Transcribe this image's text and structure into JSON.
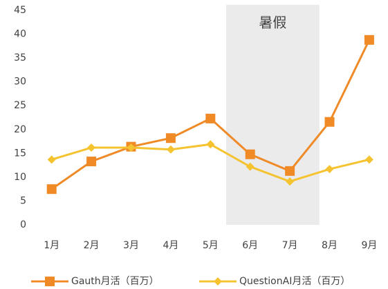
{
  "chart_data": {
    "type": "line",
    "categories": [
      "1月",
      "2月",
      "3月",
      "4月",
      "5月",
      "6月",
      "7月",
      "8月",
      "9月"
    ],
    "series": [
      {
        "name": "Gauth月活（百万）",
        "color": "#ef8a27",
        "marker": "square",
        "values": [
          7.5,
          13.3,
          16.4,
          18.2,
          22.3,
          14.8,
          11.3,
          21.6,
          38.8
        ]
      },
      {
        "name": "QuestionAI月活（百万）",
        "color": "#f5c330",
        "marker": "diamond",
        "values": [
          13.7,
          16.2,
          16.2,
          15.8,
          16.9,
          12.2,
          9.1,
          11.7,
          13.7
        ]
      }
    ],
    "ylim": [
      0,
      45
    ],
    "yticks": [
      0,
      5,
      10,
      15,
      20,
      25,
      30,
      35,
      40,
      45
    ],
    "grid": false,
    "shaded_range": {
      "label": "暑假",
      "from": "6月",
      "to": "7月",
      "color": "#ebebeb"
    },
    "legend": "bottom"
  }
}
